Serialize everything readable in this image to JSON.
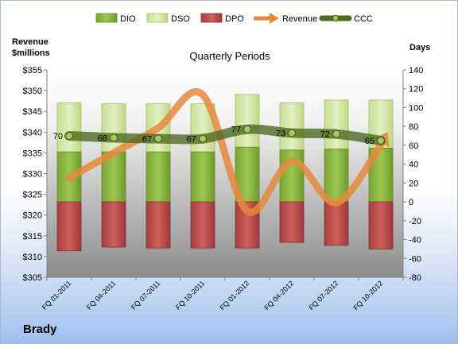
{
  "chart_data": {
    "type": "bar",
    "title": "Quarterly Periods",
    "company": "Brady",
    "y_left_label_line1": "Revenue",
    "y_left_label_line2": "$millions",
    "y_right_label": "Days",
    "categories": [
      "FQ 01-2011",
      "FQ 04-2011",
      "FQ 07-2011",
      "FQ 10-2011",
      "FQ 01-2012",
      "FQ 04-2012",
      "FQ 07-2012",
      "FQ 10-2012"
    ],
    "left_axis": {
      "range": [
        305,
        355
      ],
      "step": 5,
      "prefix": "$"
    },
    "right_axis": {
      "range": [
        -80,
        140
      ],
      "step": 20
    },
    "series": [
      {
        "name": "DIO",
        "type": "stacked-bar",
        "axis": "right",
        "color": "#8bb83f",
        "values": [
          53,
          53,
          53,
          53,
          58,
          55,
          56,
          57
        ]
      },
      {
        "name": "DSO",
        "type": "stacked-bar",
        "axis": "right",
        "color": "#d5e8a8",
        "values": [
          52,
          51,
          51,
          51,
          56,
          50,
          52,
          51
        ]
      },
      {
        "name": "DPO",
        "type": "stacked-bar",
        "axis": "right",
        "color": "#c0504d",
        "values": [
          -52,
          -48,
          -49,
          -49,
          -49,
          -43,
          -46,
          -50
        ]
      },
      {
        "name": "Revenue",
        "type": "line",
        "axis": "left",
        "color": "#e88a3c",
        "values": [
          329,
          335,
          341,
          349,
          321,
          333,
          323,
          337
        ]
      },
      {
        "name": "CCC",
        "type": "line",
        "axis": "right",
        "color": "#556b2f",
        "values": [
          70,
          68,
          67,
          67,
          77,
          73,
          72,
          65
        ]
      }
    ],
    "grid": false,
    "legend_position": "top"
  }
}
